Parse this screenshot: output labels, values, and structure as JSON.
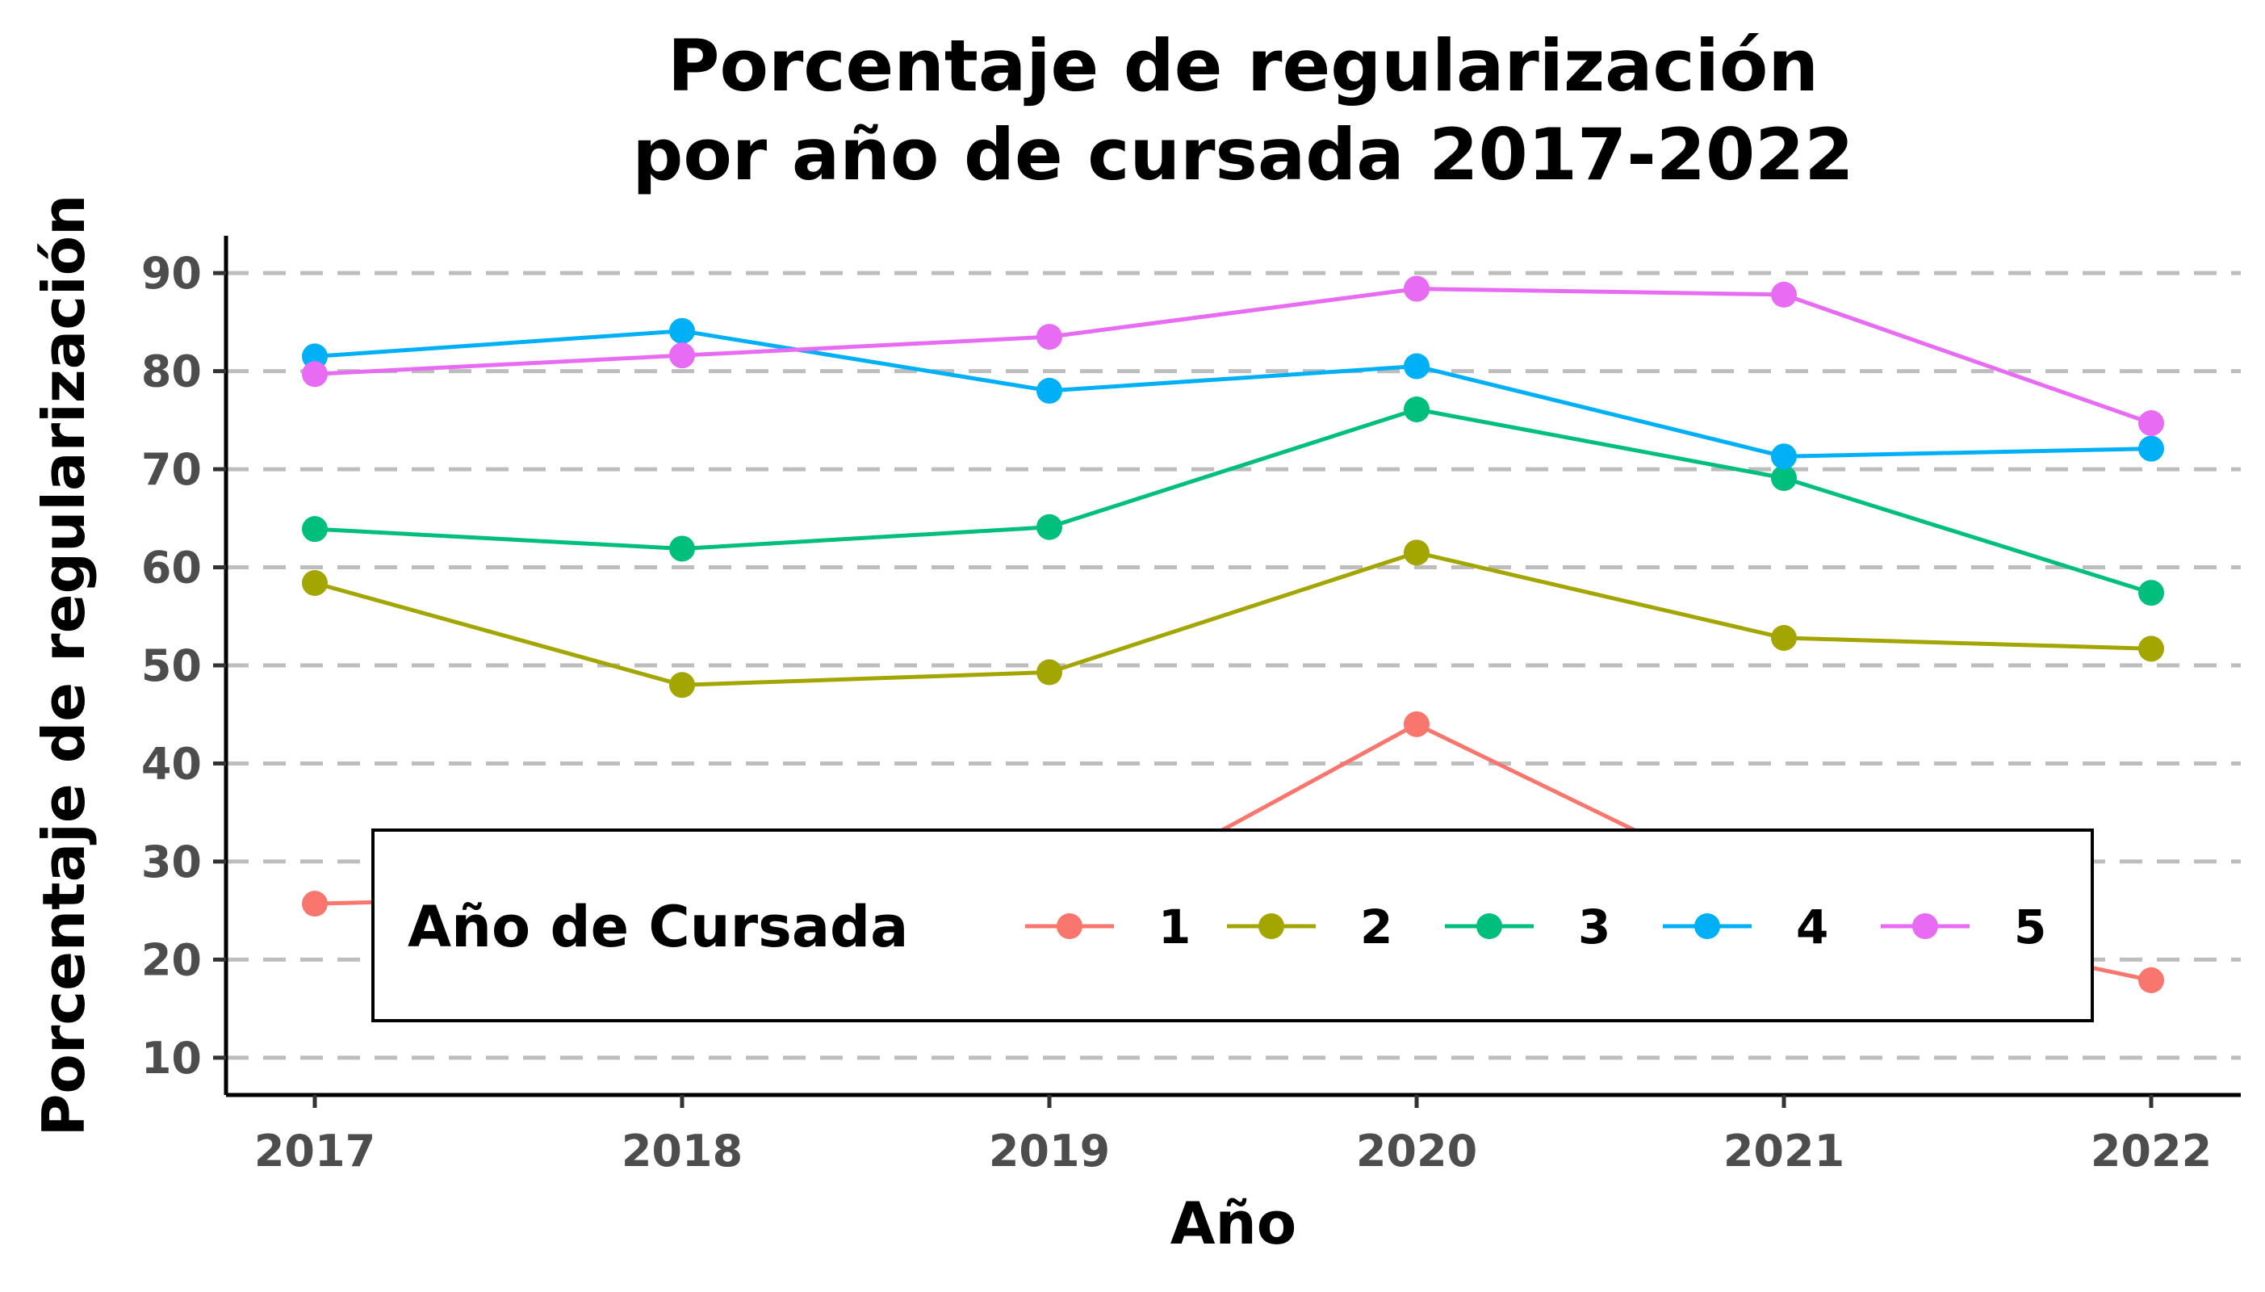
{
  "chart_data": {
    "type": "line",
    "title_line1": "Porcentaje de regularización",
    "title_line2": "por año de cursada 2017-2022",
    "xlabel": "Año",
    "ylabel": "Porcentaje de regularización",
    "x": [
      "2017",
      "2018",
      "2019",
      "2020",
      "2021",
      "2022"
    ],
    "y_ticks": [
      "10",
      "20",
      "30",
      "40",
      "50",
      "60",
      "70",
      "80",
      "90"
    ],
    "ylim": [
      6.2,
      93.8
    ],
    "grid": "horizontal dashed",
    "legend": {
      "title": "Año de Cursada",
      "placement": "bottom-inside"
    },
    "series": [
      {
        "name": "1",
        "color": "#F8766D",
        "values": [
          25.7,
          26.6,
          23.6,
          44.0,
          25.8,
          17.9
        ]
      },
      {
        "name": "2",
        "color": "#A3A500",
        "values": [
          58.4,
          48.0,
          49.3,
          61.5,
          52.8,
          51.7
        ]
      },
      {
        "name": "3",
        "color": "#00BF7D",
        "values": [
          63.9,
          61.9,
          64.1,
          76.1,
          69.1,
          57.4
        ]
      },
      {
        "name": "4",
        "color": "#00B0F6",
        "values": [
          81.5,
          84.1,
          78.0,
          80.5,
          71.3,
          72.1
        ]
      },
      {
        "name": "5",
        "color": "#E76BF3",
        "values": [
          79.7,
          81.6,
          83.5,
          88.4,
          87.8,
          74.7
        ]
      }
    ]
  }
}
